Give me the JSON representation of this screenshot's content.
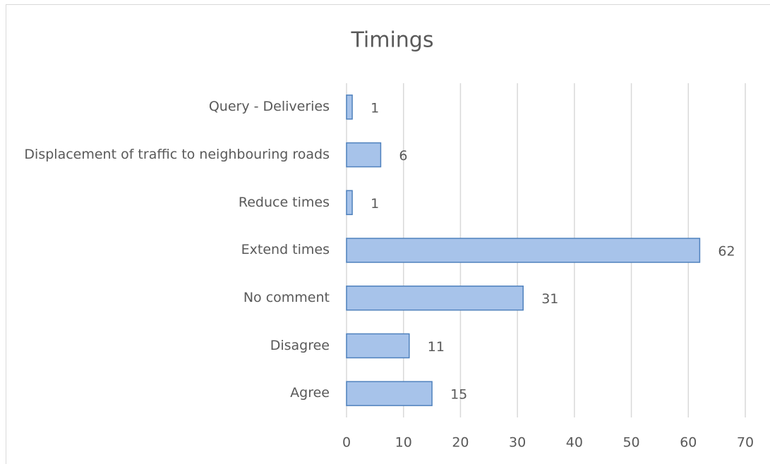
{
  "chart_data": {
    "type": "bar",
    "orientation": "horizontal",
    "title": "Timings",
    "categories": [
      "Query - Deliveries",
      "Displacement of traffic to neighbouring roads",
      "Reduce times",
      "Extend times",
      "No comment",
      "Disagree",
      "Agree"
    ],
    "values": [
      1,
      6,
      1,
      62,
      31,
      11,
      15
    ],
    "color": "#a7c3ea",
    "xlim": [
      0,
      70
    ],
    "xticks": [
      0,
      10,
      20,
      30,
      40,
      50,
      60,
      70
    ],
    "grid": true
  }
}
